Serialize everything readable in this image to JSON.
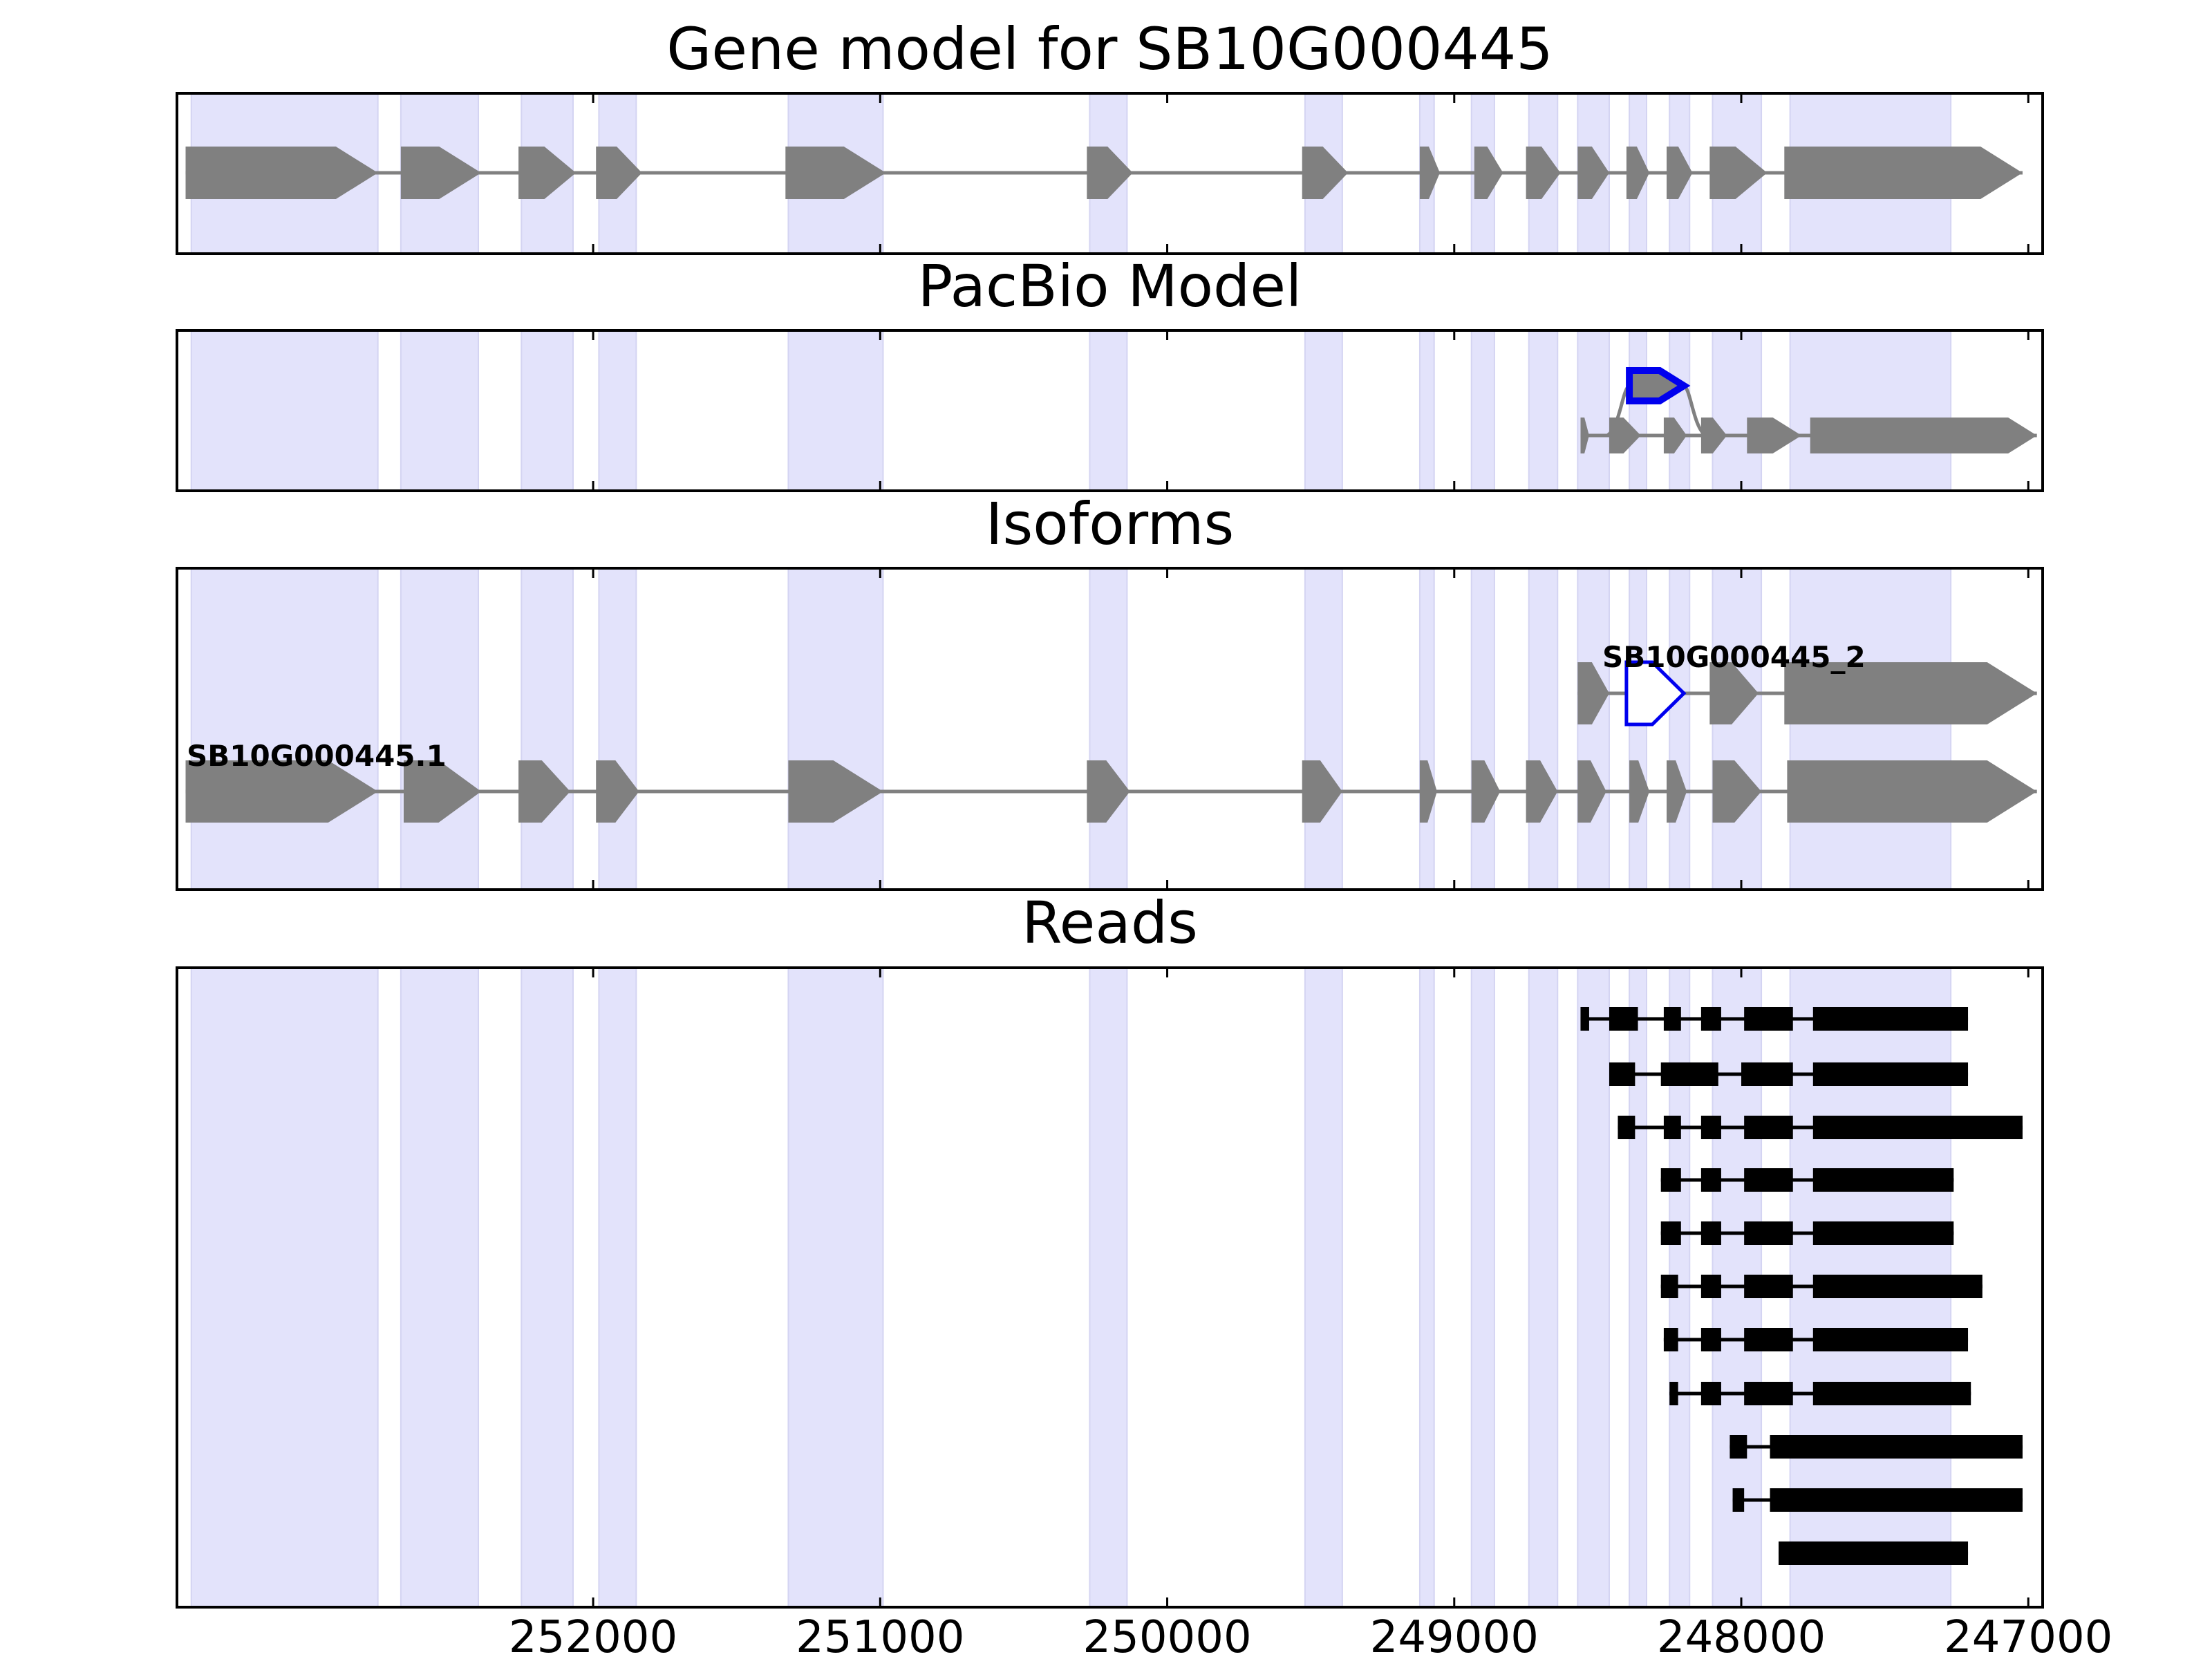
{
  "chart_data": {
    "type": "gene-structure",
    "xlim": [
      253450,
      246950
    ],
    "x_ticks": [
      252000,
      251000,
      250000,
      249000,
      248000,
      247000
    ],
    "x_tick_labels": [
      "252000",
      "251000",
      "250000",
      "249000",
      "248000",
      "247000"
    ],
    "colors": {
      "exon": "#808080",
      "intron": "#808080",
      "highlight": "#0000ee",
      "shade": "#e3e3fb",
      "read": "#000000",
      "axis": "#000000"
    },
    "shaded_exon_regions": [
      [
        253400,
        252750
      ],
      [
        252670,
        252400
      ],
      [
        252250,
        252070
      ],
      [
        251980,
        251850
      ],
      [
        251320,
        250990
      ],
      [
        250270,
        250140
      ],
      [
        249520,
        249390
      ],
      [
        249120,
        249070
      ],
      [
        248940,
        248860
      ],
      [
        248740,
        248640
      ],
      [
        248570,
        248460
      ],
      [
        248390,
        248330
      ],
      [
        248250,
        248180
      ],
      [
        248100,
        247930
      ],
      [
        247830,
        247270
      ]
    ],
    "panels": [
      {
        "title": "Gene model for SB10G000445",
        "rows": [
          {
            "exons": [
              [
                253420,
                252750
              ],
              [
                252670,
                252390
              ],
              [
                252260,
                252060
              ],
              [
                251990,
                251830
              ],
              [
                251330,
                250980
              ],
              [
                250280,
                250120
              ],
              [
                249530,
                249370
              ],
              [
                249120,
                249050
              ],
              [
                248930,
                248830
              ],
              [
                248750,
                248630
              ],
              [
                248570,
                248460
              ],
              [
                248400,
                248320
              ],
              [
                248260,
                248170
              ],
              [
                248110,
                247910
              ],
              [
                247850,
                247020
              ]
            ]
          }
        ]
      },
      {
        "title": "PacBio Model",
        "rows": [
          {
            "exons": [
              [
                248390,
                248200
              ]
            ],
            "highlight": true
          },
          {
            "exons": [
              [
                248560,
                248530
              ],
              [
                248460,
                248350
              ],
              [
                248270,
                248190
              ],
              [
                248140,
                248050
              ],
              [
                247980,
                247790
              ],
              [
                247760,
                246970
              ]
            ]
          }
        ]
      },
      {
        "title": "Isoforms",
        "rows": [
          {
            "label": "SB10G000445_2",
            "exons": [
              [
                248570,
                248460
              ],
              [
                248400,
                248200
              ],
              [
                248110,
                247940
              ],
              [
                247850,
                246970
              ]
            ],
            "highlight_exon": 1
          },
          {
            "label": "SB10G000445.1",
            "exons": [
              [
                253420,
                252750
              ],
              [
                252660,
                252390
              ],
              [
                252260,
                252080
              ],
              [
                251990,
                251840
              ],
              [
                251320,
                250990
              ],
              [
                250280,
                250130
              ],
              [
                249530,
                249390
              ],
              [
                249120,
                249060
              ],
              [
                248940,
                248840
              ],
              [
                248750,
                248640
              ],
              [
                248570,
                248470
              ],
              [
                248390,
                248320
              ],
              [
                248260,
                248190
              ],
              [
                248100,
                247930
              ],
              [
                247840,
                246970
              ]
            ]
          }
        ]
      },
      {
        "title": "Reads",
        "rows": [
          {
            "exons": [
              [
                248560,
                248530
              ],
              [
                248460,
                248360
              ],
              [
                248270,
                248210
              ],
              [
                248140,
                248070
              ],
              [
                247990,
                247820
              ],
              [
                247750,
                247210
              ]
            ]
          },
          {
            "exons": [
              [
                248460,
                248370
              ],
              [
                248280,
                248080
              ],
              [
                248000,
                247820
              ],
              [
                247750,
                247210
              ]
            ]
          },
          {
            "exons": [
              [
                248430,
                248370
              ],
              [
                248270,
                248210
              ],
              [
                248140,
                248070
              ],
              [
                247990,
                247820
              ],
              [
                247750,
                247020
              ]
            ]
          },
          {
            "exons": [
              [
                248280,
                248210
              ],
              [
                248140,
                248070
              ],
              [
                247990,
                247820
              ],
              [
                247750,
                247260
              ]
            ]
          },
          {
            "exons": [
              [
                248280,
                248210
              ],
              [
                248140,
                248070
              ],
              [
                247990,
                247820
              ],
              [
                247750,
                247260
              ]
            ]
          },
          {
            "exons": [
              [
                248280,
                248220
              ],
              [
                248140,
                248070
              ],
              [
                247990,
                247820
              ],
              [
                247750,
                247160
              ]
            ]
          },
          {
            "exons": [
              [
                248270,
                248220
              ],
              [
                248140,
                248070
              ],
              [
                247990,
                247820
              ],
              [
                247750,
                247210
              ]
            ]
          },
          {
            "exons": [
              [
                248250,
                248220
              ],
              [
                248140,
                248070
              ],
              [
                247990,
                247820
              ],
              [
                247750,
                247200
              ]
            ]
          },
          {
            "exons": [
              [
                248040,
                247980
              ],
              [
                247900,
                247720
              ],
              [
                247750,
                247020
              ]
            ]
          },
          {
            "exons": [
              [
                248030,
                247990
              ],
              [
                247900,
                247730
              ],
              [
                247750,
                247020
              ]
            ]
          },
          {
            "exons": [
              [
                247870,
                247740
              ],
              [
                247750,
                247210
              ]
            ]
          }
        ]
      }
    ]
  }
}
